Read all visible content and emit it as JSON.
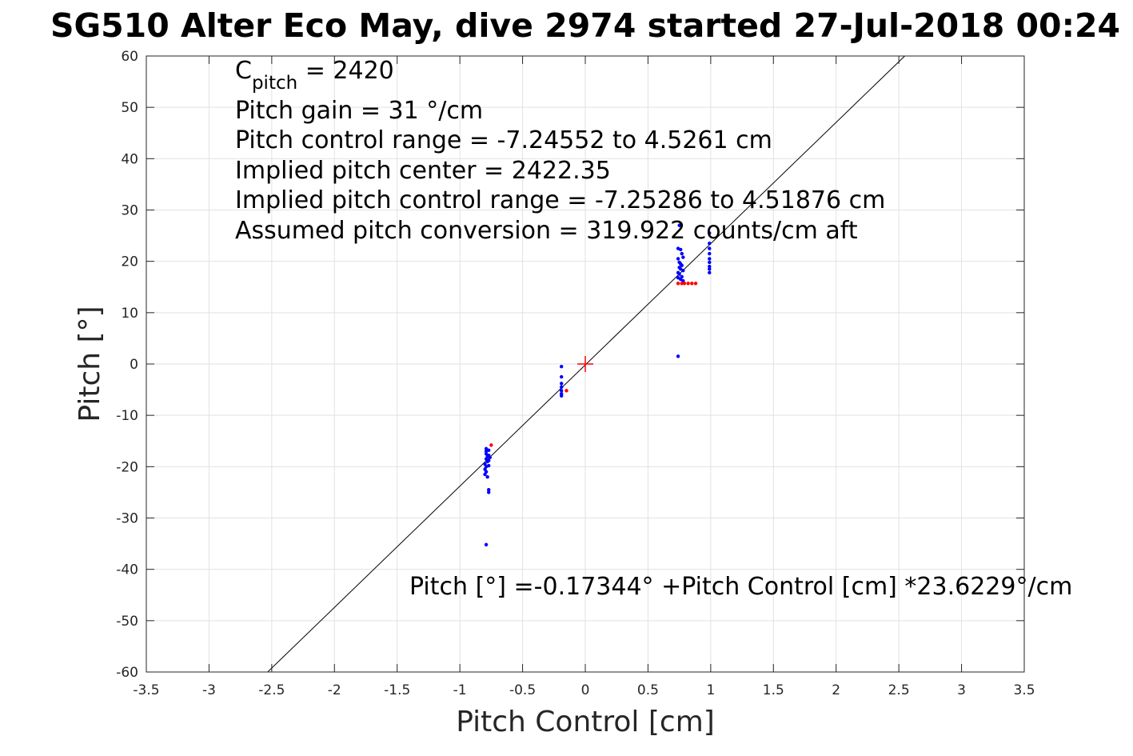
{
  "chart_data": {
    "type": "scatter",
    "title": "SG510 Alter Eco May, dive 2974 started 27-Jul-2018 00:24",
    "xlabel": "Pitch Control [cm]",
    "ylabel": "Pitch [°]",
    "xlim": [
      -3.5,
      3.5
    ],
    "ylim": [
      -60,
      60
    ],
    "xticks": [
      -3.5,
      -3,
      -2.5,
      -2,
      -1.5,
      -1,
      -0.5,
      0,
      0.5,
      1,
      1.5,
      2,
      2.5,
      3,
      3.5
    ],
    "xtick_labels": [
      "-3.5",
      "-3",
      "-2.5",
      "-2",
      "-1.5",
      "-1",
      "-0.5",
      "0",
      "0.5",
      "1",
      "1.5",
      "2",
      "2.5",
      "3",
      "3.5"
    ],
    "yticks": [
      -60,
      -50,
      -40,
      -30,
      -20,
      -10,
      0,
      10,
      20,
      30,
      40,
      50,
      60
    ],
    "ytick_labels": [
      "-60",
      "-50",
      "-40",
      "-30",
      "-20",
      "-10",
      "0",
      "10",
      "20",
      "30",
      "40",
      "50",
      "60"
    ],
    "grid": true,
    "colors": {
      "primary": "#0000ff",
      "flagged": "#ff0000",
      "fit": "#000000",
      "center": "#ff0000"
    },
    "fit_line": {
      "intercept": -0.17344,
      "slope": 23.6229
    },
    "center_marker": {
      "x": 0,
      "y": 0
    },
    "series": [
      {
        "color": "#0000ff",
        "points": [
          [
            -0.79,
            -16.5
          ],
          [
            -0.79,
            -17.0
          ],
          [
            -0.79,
            -17.5
          ],
          [
            -0.78,
            -18.0
          ],
          [
            -0.79,
            -18.5
          ],
          [
            -0.78,
            -19.0
          ],
          [
            -0.8,
            -19.5
          ],
          [
            -0.79,
            -20.0
          ],
          [
            -0.77,
            -16.8
          ],
          [
            -0.77,
            -17.8
          ],
          [
            -0.77,
            -18.8
          ],
          [
            -0.77,
            -19.8
          ],
          [
            -0.8,
            -20.5
          ],
          [
            -0.79,
            -21.0
          ],
          [
            -0.8,
            -21.5
          ],
          [
            -0.78,
            -22.0
          ],
          [
            -0.77,
            -24.5
          ],
          [
            -0.77,
            -25.0
          ],
          [
            -0.79,
            -35.2
          ],
          [
            -0.76,
            -18.2
          ],
          [
            -0.19,
            -0.5
          ],
          [
            -0.19,
            -2.5
          ],
          [
            -0.19,
            -3.8
          ],
          [
            -0.19,
            -4.5
          ],
          [
            -0.19,
            -5.2
          ],
          [
            -0.19,
            -5.8
          ],
          [
            -0.19,
            -6.2
          ],
          [
            0.74,
            22.5
          ],
          [
            0.76,
            22.3
          ],
          [
            0.77,
            21.5
          ],
          [
            0.78,
            20.8
          ],
          [
            0.74,
            20.5
          ],
          [
            0.75,
            19.8
          ],
          [
            0.76,
            19.5
          ],
          [
            0.77,
            19.2
          ],
          [
            0.75,
            18.8
          ],
          [
            0.76,
            18.5
          ],
          [
            0.78,
            18.2
          ],
          [
            0.74,
            17.8
          ],
          [
            0.75,
            17.5
          ],
          [
            0.77,
            17.0
          ],
          [
            0.76,
            16.5
          ],
          [
            0.78,
            16.2
          ],
          [
            0.74,
            16.8
          ],
          [
            0.75,
            27.0
          ],
          [
            0.74,
            1.5
          ],
          [
            0.99,
            23.5
          ],
          [
            0.99,
            22.5
          ],
          [
            0.99,
            21.5
          ],
          [
            0.99,
            20.5
          ],
          [
            0.99,
            19.8
          ],
          [
            0.99,
            19.0
          ],
          [
            0.99,
            18.5
          ],
          [
            0.99,
            17.8
          ],
          [
            0.99,
            25.5
          ]
        ]
      },
      {
        "color": "#ff0000",
        "points": [
          [
            -0.75,
            -15.8
          ],
          [
            -0.15,
            -5.2
          ],
          [
            0.74,
            15.7
          ],
          [
            0.77,
            15.7
          ],
          [
            0.79,
            15.7
          ],
          [
            0.82,
            15.7
          ],
          [
            0.85,
            15.7
          ],
          [
            0.88,
            15.7
          ]
        ]
      }
    ],
    "annotations": [
      {
        "id": "cpitch",
        "main": "C",
        "sub": "pitch",
        "rest": " = 2420"
      },
      {
        "id": "gain",
        "text": "Pitch gain = 31 °/cm"
      },
      {
        "id": "range",
        "text": "Pitch control range = -7.24552 to 4.5261 cm"
      },
      {
        "id": "center",
        "text": "Implied pitch center = 2422.35"
      },
      {
        "id": "implied_range",
        "text": "Implied pitch control range = -7.25286 to 4.51876 cm"
      },
      {
        "id": "conversion",
        "text": "Assumed pitch conversion = 319.922 counts/cm aft"
      },
      {
        "id": "fit_equation",
        "text": "Pitch [°] =-0.17344° +Pitch Control [cm] *23.6229°/cm"
      }
    ]
  }
}
